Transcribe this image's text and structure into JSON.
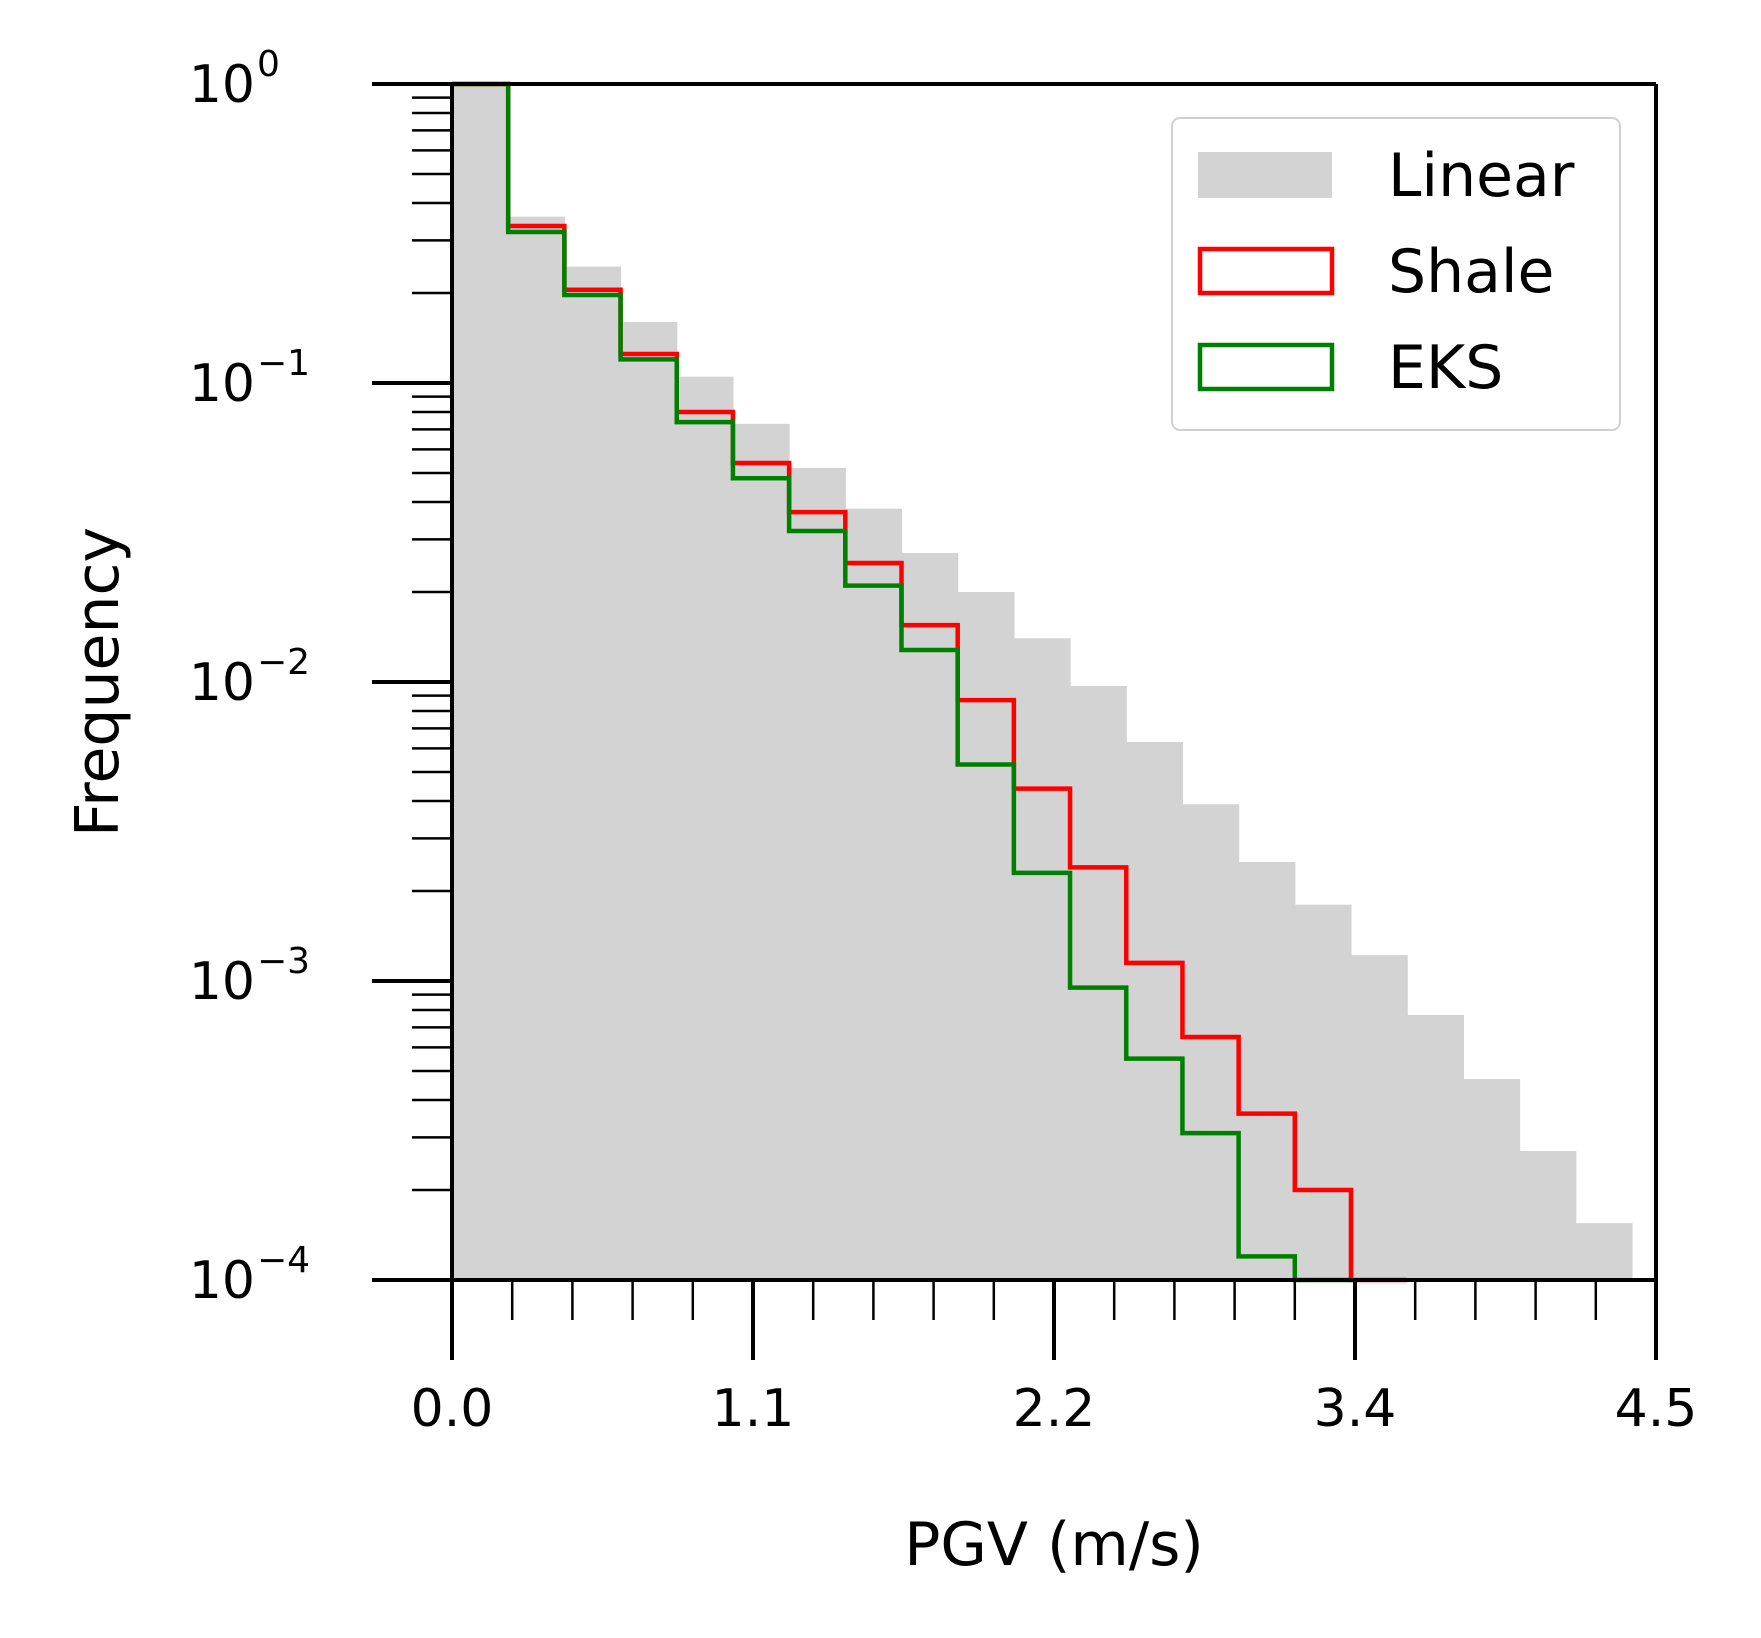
{
  "chart_data": {
    "type": "bar",
    "title": "",
    "xlabel": "PGV (m/s)",
    "ylabel": "Frequency",
    "xscale": "linear",
    "yscale": "log",
    "xlim": [
      0.0,
      4.5
    ],
    "ylim": [
      0.0001,
      1
    ],
    "xticks": [
      {
        "value": 0.0,
        "label": "0.0"
      },
      {
        "value": 1.125,
        "label": "1.1"
      },
      {
        "value": 2.25,
        "label": "2.2"
      },
      {
        "value": 3.375,
        "label": "3.4"
      },
      {
        "value": 4.5,
        "label": "4.5"
      }
    ],
    "yticks": [
      {
        "value": 1,
        "base": "10",
        "exp": "0"
      },
      {
        "value": 0.1,
        "base": "10",
        "exp": "−1"
      },
      {
        "value": 0.01,
        "base": "10",
        "exp": "−2"
      },
      {
        "value": 0.001,
        "base": "10",
        "exp": "−3"
      },
      {
        "value": 0.0001,
        "base": "10",
        "exp": "−4"
      }
    ],
    "bin_edges": [
      0,
      0.21,
      0.42,
      0.63,
      0.84,
      1.05,
      1.26,
      1.47,
      1.68,
      1.89,
      2.1,
      2.31,
      2.52,
      2.73,
      2.94,
      3.15,
      3.36,
      3.57,
      3.78,
      3.99,
      4.2,
      4.41
    ],
    "series": [
      {
        "name": "Linear",
        "style": "filled",
        "color": "#d3d3d3",
        "values": [
          1.0,
          0.36,
          0.245,
          0.16,
          0.105,
          0.073,
          0.052,
          0.038,
          0.027,
          0.02,
          0.014,
          0.0097,
          0.0063,
          0.0039,
          0.0025,
          0.0018,
          0.00122,
          0.00077,
          0.00047,
          0.00027,
          0.000155
        ]
      },
      {
        "name": "Shale",
        "style": "step",
        "color": "#ff0000",
        "values": [
          1.0,
          0.335,
          0.205,
          0.125,
          0.08,
          0.054,
          0.037,
          0.025,
          0.0155,
          0.0087,
          0.0044,
          0.0024,
          0.00115,
          0.00065,
          0.00036,
          0.0002,
          0.0001
        ]
      },
      {
        "name": "EKS",
        "style": "step",
        "color": "#008000",
        "values": [
          1.0,
          0.32,
          0.197,
          0.12,
          0.074,
          0.048,
          0.032,
          0.021,
          0.0128,
          0.0053,
          0.0023,
          0.00095,
          0.00055,
          0.00031,
          0.00012,
          0.0001
        ]
      }
    ],
    "legend": {
      "placement": "top-right",
      "entries": [
        "Linear",
        "Shale",
        "EKS"
      ]
    },
    "grid": false
  }
}
